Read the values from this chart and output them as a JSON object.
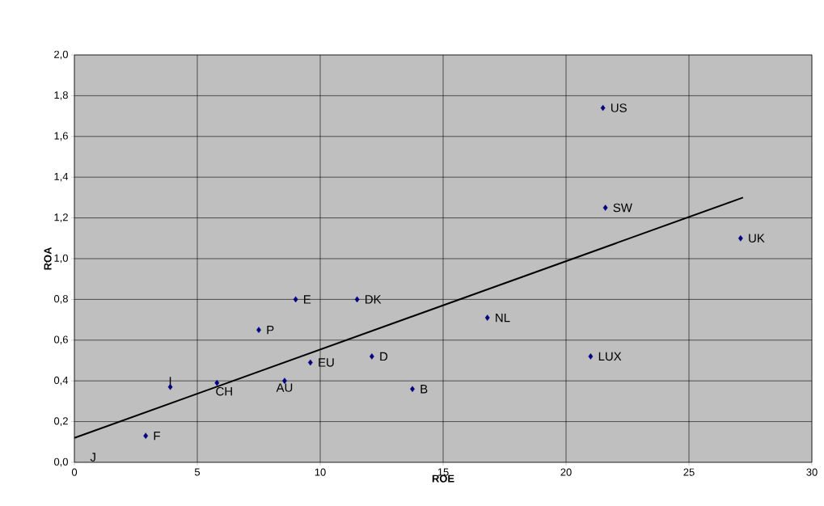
{
  "chart_data": {
    "type": "scatter",
    "xlabel": "ROE",
    "ylabel": "ROA",
    "xlim": [
      0,
      30
    ],
    "ylim": [
      0,
      2.0
    ],
    "xticks": [
      0,
      5,
      10,
      15,
      20,
      25,
      30
    ],
    "yticks": [
      {
        "value": 0,
        "label": "0,0"
      },
      {
        "value": 0.2,
        "label": "0,2"
      },
      {
        "value": 0.4,
        "label": "0,4"
      },
      {
        "value": 0.6,
        "label": "0,6"
      },
      {
        "value": 0.8,
        "label": "0,8"
      },
      {
        "value": 1.0,
        "label": "1,0"
      },
      {
        "value": 1.2,
        "label": "1,2"
      },
      {
        "value": 1.4,
        "label": "1,4"
      },
      {
        "value": 1.6,
        "label": "1,6"
      },
      {
        "value": 1.8,
        "label": "1,8"
      },
      {
        "value": 2.0,
        "label": "2,0"
      }
    ],
    "grid": true,
    "series": [
      {
        "color": "#000080",
        "marker": "diamond",
        "x": [
          21.5,
          21.6,
          27.1,
          16.8,
          21.0,
          11.5,
          9.0,
          7.5,
          12.1,
          9.6,
          13.75,
          8.55,
          5.8,
          3.9,
          2.9
        ],
        "values": [
          1.74,
          1.25,
          1.1,
          0.71,
          0.52,
          0.8,
          0.8,
          0.65,
          0.52,
          0.49,
          0.36,
          0.4,
          0.39,
          0.37,
          0.13
        ]
      },
      {
        "type": "line",
        "color": "#000000",
        "marker": "none",
        "line_style": "solid",
        "x": [
          0,
          27.2
        ],
        "values": [
          0.12,
          1.3
        ]
      }
    ],
    "annotations": [
      {
        "text": "US",
        "x": 21.5,
        "y": 1.74
      },
      {
        "text": "SW",
        "x": 21.6,
        "y": 1.25
      },
      {
        "text": "UK",
        "x": 27.1,
        "y": 1.1
      },
      {
        "text": "NL",
        "x": 16.8,
        "y": 0.71
      },
      {
        "text": "LUX",
        "x": 21.0,
        "y": 0.52
      },
      {
        "text": "DK",
        "x": 11.5,
        "y": 0.8
      },
      {
        "text": "E",
        "x": 9.0,
        "y": 0.8
      },
      {
        "text": "P",
        "x": 7.5,
        "y": 0.65
      },
      {
        "text": "D",
        "x": 12.1,
        "y": 0.52
      },
      {
        "text": "EU",
        "x": 9.6,
        "y": 0.49
      },
      {
        "text": "B",
        "x": 13.75,
        "y": 0.36
      },
      {
        "text": "AU",
        "x": 8.55,
        "y": 0.4
      },
      {
        "text": "CH",
        "x": 5.8,
        "y": 0.39
      },
      {
        "text": "I",
        "x": 3.9,
        "y": 0.37
      },
      {
        "text": "F",
        "x": 2.9,
        "y": 0.13
      },
      "J"
    ]
  }
}
